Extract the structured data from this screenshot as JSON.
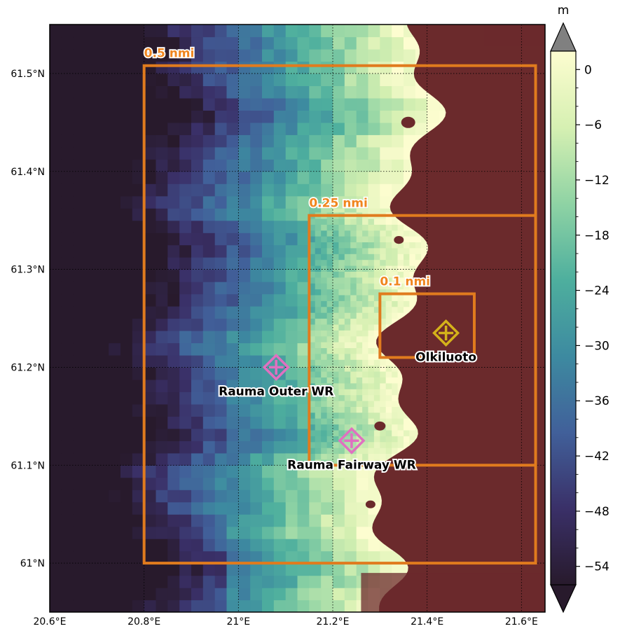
{
  "map": {
    "x_ticks": [
      "20.6°E",
      "20.8°E",
      "21°E",
      "21.2°E",
      "21.4°E",
      "21.6°E"
    ],
    "y_ticks": [
      "61°N",
      "61.1°N",
      "61.2°N",
      "61.3°N",
      "61.4°N",
      "61.5°N"
    ],
    "x_range": [
      20.6,
      21.65
    ],
    "y_range": [
      60.95,
      61.55
    ],
    "land_color": "#6b2a2c",
    "box_color": "#e07b1e"
  },
  "boxes": [
    {
      "label": "0.5 nmi",
      "lon": [
        20.8,
        21.63
      ],
      "lat": [
        61.0,
        61.508
      ]
    },
    {
      "label": "0.25 nmi",
      "lon": [
        21.15,
        21.63
      ],
      "lat": [
        61.1,
        61.355
      ]
    },
    {
      "label": "0.1 nmi",
      "lon": [
        21.3,
        21.5
      ],
      "lat": [
        61.21,
        61.275
      ]
    }
  ],
  "sites": [
    {
      "label": "Olkiluoto",
      "lon": 21.44,
      "lat": 61.235,
      "color": "#d4b21a"
    },
    {
      "label": "Rauma Outer WR",
      "lon": 21.08,
      "lat": 61.2,
      "color": "#e070c0"
    },
    {
      "label": "Rauma Fairway WR",
      "lon": 21.24,
      "lat": 61.125,
      "color": "#e070c0"
    }
  ],
  "colorbar": {
    "unit": "m",
    "ticks": [
      "0",
      "−6",
      "−12",
      "−18",
      "−24",
      "−30",
      "−36",
      "−42",
      "−48",
      "−54"
    ],
    "range": [
      -56,
      2
    ],
    "colors": [
      "#281a2c",
      "#3a3068",
      "#41609a",
      "#3d8aa0",
      "#4eaf9e",
      "#8fd3a4",
      "#d6f0b2",
      "#fdfdd0"
    ],
    "over_color": "#808080"
  }
}
